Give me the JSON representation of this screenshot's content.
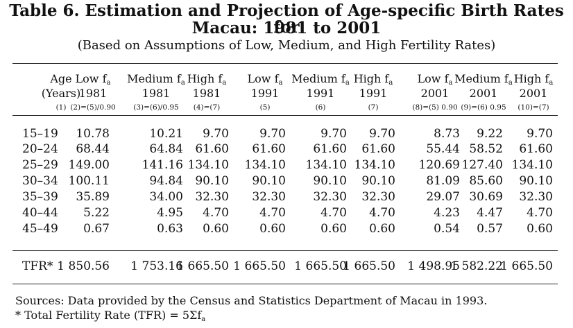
{
  "title_line1": "Table 6. Estimation and Projection of Age-specific Birth Rates for",
  "title_line2": "Macau: 1981 to 2001",
  "subtitle": "(Based on Assumptions of Low, Medium, and High Fertility Rates)",
  "columns": [
    {
      "line1": "Age",
      "line2": "(Years)",
      "code": "(1)"
    },
    {
      "line1": "Low f",
      "sub": "a",
      "line2": "1981",
      "code": "(2)=(5)/0.90"
    },
    {
      "line1": "Medium f",
      "sub": "a",
      "line2": "1981",
      "code": "(3)=(6)/0.95"
    },
    {
      "line1": "High f",
      "sub": "a",
      "line2": "1981",
      "code": "(4)=(7)"
    },
    {
      "line1": "Low f",
      "sub": "a",
      "line2": "1991",
      "code": "(5)"
    },
    {
      "line1": "Medium f",
      "sub": "a",
      "line2": "1991",
      "code": "(6)"
    },
    {
      "line1": "High f",
      "sub": "a",
      "line2": "1991",
      "code": "(7)"
    },
    {
      "line1": "Low f",
      "sub": "a",
      "line2": "2001",
      "code": "(8)=(5) 0.90"
    },
    {
      "line1": "Medium f",
      "sub": "a",
      "line2": "2001",
      "code": "(9)=(6) 0.95"
    },
    {
      "line1": "High f",
      "sub": "a",
      "line2": "2001",
      "code": "(10)=(7)"
    }
  ],
  "rows": [
    {
      "age": "15–19",
      "values": [
        "10.78",
        "10.21",
        "9.70",
        "9.70",
        "9.70",
        "9.70",
        "8.73",
        "9.22",
        "9.70"
      ]
    },
    {
      "age": "20–24",
      "values": [
        "68.44",
        "64.84",
        "61.60",
        "61.60",
        "61.60",
        "61.60",
        "55.44",
        "58.52",
        "61.60"
      ]
    },
    {
      "age": "25–29",
      "values": [
        "149.00",
        "141.16",
        "134.10",
        "134.10",
        "134.10",
        "134.10",
        "120.69",
        "127.40",
        "134.10"
      ]
    },
    {
      "age": "30–34",
      "values": [
        "100.11",
        "94.84",
        "90.10",
        "90.10",
        "90.10",
        "90.10",
        "81.09",
        "85.60",
        "90.10"
      ]
    },
    {
      "age": "35–39",
      "values": [
        "35.89",
        "34.00",
        "32.30",
        "32.30",
        "32.30",
        "32.30",
        "29.07",
        "30.69",
        "32.30"
      ]
    },
    {
      "age": "40–44",
      "values": [
        "5.22",
        "4.95",
        "4.70",
        "4.70",
        "4.70",
        "4.70",
        "4.23",
        "4.47",
        "4.70"
      ]
    },
    {
      "age": "45–49",
      "values": [
        "0.67",
        "0.63",
        "0.60",
        "0.60",
        "0.60",
        "0.60",
        "0.54",
        "0.57",
        "0.60"
      ]
    }
  ],
  "tfr": {
    "label": "TFR*",
    "values": [
      "1 850.56",
      "1 753.16",
      "1 665.50",
      "1 665.50",
      "1 665.50",
      "1 665.50",
      "1 498.95",
      "1 582.22",
      "1 665.50"
    ]
  },
  "footnotes": {
    "sources": "Sources: Data provided by the Census and Statistics Department of Macau in 1993.",
    "tfr_note": "* Total Fertility Rate (TFR) = 5Σf",
    "tfr_note_sub": "a"
  }
}
